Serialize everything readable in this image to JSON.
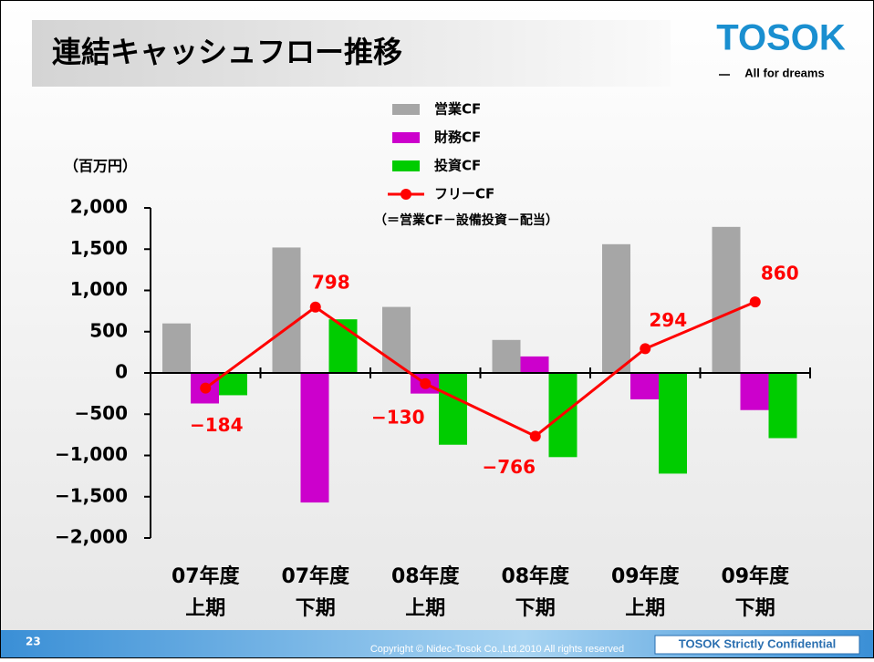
{
  "slide": {
    "title": "連結キャッシュフロー推移",
    "logo": "TOSOK",
    "tagline": "All for dreams",
    "page_number": "23",
    "copyright": "Copyright © Nidec-Tosok Co.,Ltd.2010 All rights reserved",
    "confidential": "TOSOK Strictly Confidential"
  },
  "chart_data": {
    "type": "bar",
    "y_unit": "（百万円）",
    "legend_note": "（＝営業CF－設備投資－配当）",
    "categories": [
      [
        "07年度",
        "上期"
      ],
      [
        "07年度",
        "下期"
      ],
      [
        "08年度",
        "上期"
      ],
      [
        "08年度",
        "下期"
      ],
      [
        "09年度",
        "上期"
      ],
      [
        "09年度",
        "下期"
      ]
    ],
    "series": [
      {
        "name": "営業CF",
        "color": "#a6a6a6",
        "values": [
          600,
          1520,
          800,
          400,
          1560,
          1770
        ]
      },
      {
        "name": "財務CF",
        "color": "#cc00cc",
        "values": [
          -370,
          -1570,
          -250,
          200,
          -320,
          -450
        ]
      },
      {
        "name": "投資CF",
        "color": "#00cc00",
        "values": [
          -270,
          650,
          -870,
          -1020,
          -1220,
          -790
        ]
      },
      {
        "name": "フリーCF",
        "type": "line",
        "color": "#ff0000",
        "values": [
          -184,
          798,
          -130,
          -766,
          294,
          860
        ],
        "value_labels": [
          "−184",
          "798",
          "−130",
          "−766",
          "294",
          "860"
        ]
      }
    ],
    "ylim": [
      -2000,
      2000
    ],
    "yticks": [
      {
        "value": -2000,
        "label": "−2,000"
      },
      {
        "value": -1500,
        "label": "−1,500"
      },
      {
        "value": -1000,
        "label": "−1,000"
      },
      {
        "value": -500,
        "label": "−500"
      },
      0,
      500,
      {
        "value": 1000,
        "label": "1,000"
      },
      {
        "value": 1500,
        "label": "1,500"
      },
      {
        "value": 2000,
        "label": "2,000"
      }
    ]
  }
}
